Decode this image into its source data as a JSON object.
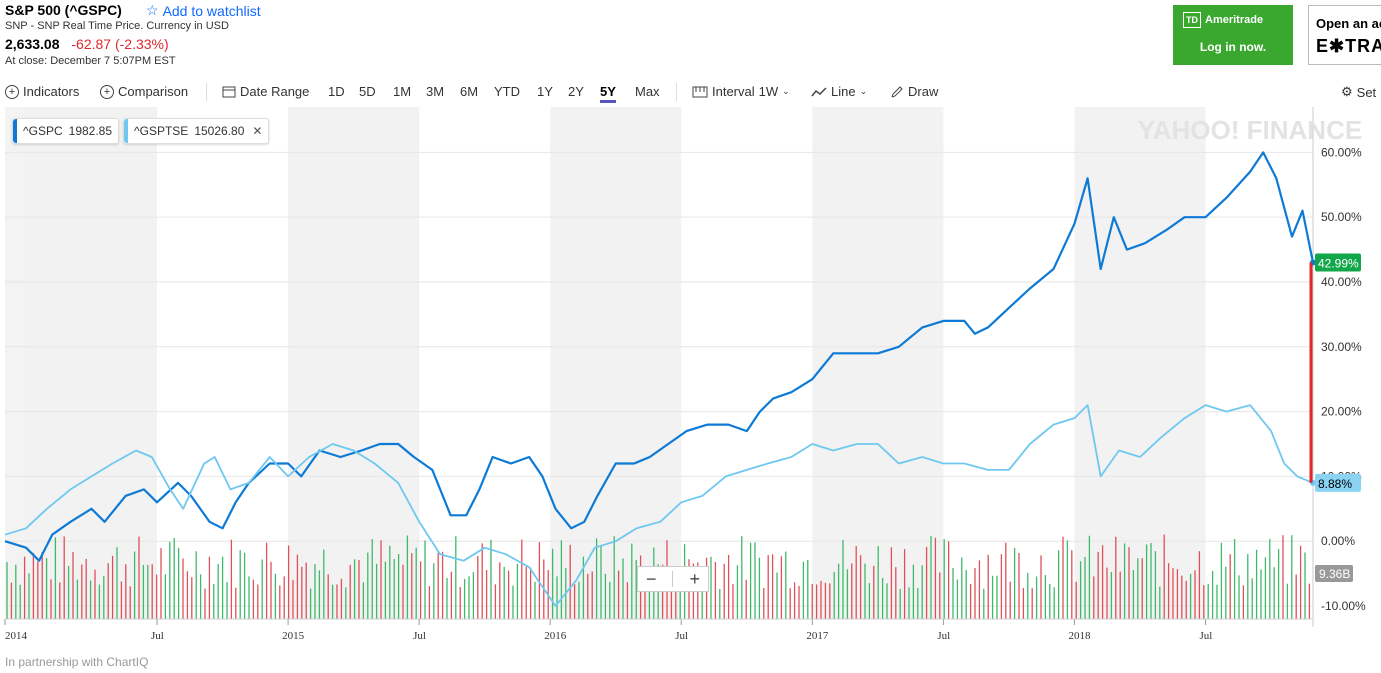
{
  "header": {
    "title": "S&P 500 (^GSPC)",
    "watchlist_label": "Add to watchlist",
    "subtitle": "SNP - SNP Real Time Price. Currency in USD",
    "price": "2,633.08",
    "change": "-62.87 (-2.33%)",
    "close_time": "At close: December 7 5:07PM EST"
  },
  "ads": {
    "td_brand": "Ameritrade",
    "td_icon_text": "TD",
    "td_cta": "Log in now.",
    "etrade_line1": "Open an ac",
    "etrade_line2": "E✱TRA"
  },
  "toolbar": {
    "indicators": "Indicators",
    "comparison": "Comparison",
    "date_range": "Date Range",
    "ranges": [
      "1D",
      "5D",
      "1M",
      "3M",
      "6M",
      "YTD",
      "1Y",
      "2Y",
      "5Y",
      "Max"
    ],
    "active_range": "5Y",
    "interval_label": "Interval",
    "interval_value": "1W",
    "chart_type": "Line",
    "draw": "Draw",
    "settings": "Set"
  },
  "legend": [
    {
      "symbol": "^GSPC",
      "value": "1982.85",
      "color": "#0d7ad6"
    },
    {
      "symbol": "^GSPTSE",
      "value": "15026.80",
      "color": "#6fc8f0",
      "close": "✕"
    }
  ],
  "chart_data": {
    "type": "line",
    "y_unit": "%",
    "ylim": [
      -12,
      67
    ],
    "y_ticks": [
      "60.00%",
      "50.00%",
      "40.00%",
      "30.00%",
      "20.00%",
      "10.00%",
      "0.00%",
      "-10.00%"
    ],
    "x_ticks": [
      "2014",
      "Jul",
      "2015",
      "Jul",
      "2016",
      "Jul",
      "2017",
      "Jul",
      "2018",
      "Jul"
    ],
    "watermark": "YAHOO! FINANCE",
    "series": [
      {
        "name": "^GSPC",
        "color": "#0d7ad6",
        "last_label": "42.99%",
        "points": [
          [
            2013.92,
            0
          ],
          [
            2014.0,
            -1
          ],
          [
            2014.05,
            -3
          ],
          [
            2014.1,
            1
          ],
          [
            2014.17,
            3
          ],
          [
            2014.25,
            5
          ],
          [
            2014.3,
            3
          ],
          [
            2014.38,
            7
          ],
          [
            2014.45,
            8
          ],
          [
            2014.5,
            6
          ],
          [
            2014.58,
            9
          ],
          [
            2014.63,
            7
          ],
          [
            2014.7,
            3
          ],
          [
            2014.75,
            2
          ],
          [
            2014.8,
            6
          ],
          [
            2014.85,
            9
          ],
          [
            2014.93,
            12
          ],
          [
            2015.0,
            12
          ],
          [
            2015.05,
            10
          ],
          [
            2015.12,
            14
          ],
          [
            2015.2,
            13
          ],
          [
            2015.28,
            14
          ],
          [
            2015.35,
            15
          ],
          [
            2015.42,
            15
          ],
          [
            2015.48,
            13
          ],
          [
            2015.55,
            11
          ],
          [
            2015.62,
            4
          ],
          [
            2015.68,
            4
          ],
          [
            2015.73,
            8
          ],
          [
            2015.78,
            13
          ],
          [
            2015.85,
            12
          ],
          [
            2015.92,
            13
          ],
          [
            2015.97,
            10
          ],
          [
            2016.02,
            5
          ],
          [
            2016.08,
            2
          ],
          [
            2016.13,
            3
          ],
          [
            2016.18,
            7
          ],
          [
            2016.25,
            12
          ],
          [
            2016.32,
            12
          ],
          [
            2016.38,
            13
          ],
          [
            2016.45,
            15
          ],
          [
            2016.52,
            17
          ],
          [
            2016.6,
            18
          ],
          [
            2016.68,
            18
          ],
          [
            2016.75,
            17
          ],
          [
            2016.8,
            20
          ],
          [
            2016.85,
            22
          ],
          [
            2016.92,
            23
          ],
          [
            2017.0,
            25
          ],
          [
            2017.08,
            29
          ],
          [
            2017.17,
            29
          ],
          [
            2017.25,
            29
          ],
          [
            2017.33,
            30
          ],
          [
            2017.42,
            33
          ],
          [
            2017.5,
            34
          ],
          [
            2017.58,
            34
          ],
          [
            2017.62,
            32
          ],
          [
            2017.67,
            33
          ],
          [
            2017.75,
            36
          ],
          [
            2017.83,
            39
          ],
          [
            2017.92,
            42
          ],
          [
            2018.0,
            49
          ],
          [
            2018.05,
            56
          ],
          [
            2018.1,
            42
          ],
          [
            2018.15,
            50
          ],
          [
            2018.2,
            45
          ],
          [
            2018.27,
            46
          ],
          [
            2018.35,
            48
          ],
          [
            2018.42,
            50
          ],
          [
            2018.5,
            50
          ],
          [
            2018.58,
            53
          ],
          [
            2018.67,
            57
          ],
          [
            2018.72,
            60
          ],
          [
            2018.77,
            56
          ],
          [
            2018.83,
            47
          ],
          [
            2018.87,
            51
          ],
          [
            2018.91,
            43
          ]
        ]
      },
      {
        "name": "^GSPTSE",
        "color": "#6fc8f0",
        "last_label": "8.88%",
        "points": [
          [
            2013.92,
            1
          ],
          [
            2014.0,
            2
          ],
          [
            2014.08,
            5
          ],
          [
            2014.17,
            8
          ],
          [
            2014.25,
            10
          ],
          [
            2014.33,
            12
          ],
          [
            2014.42,
            14
          ],
          [
            2014.48,
            13
          ],
          [
            2014.55,
            8
          ],
          [
            2014.6,
            5
          ],
          [
            2014.68,
            12
          ],
          [
            2014.72,
            13
          ],
          [
            2014.78,
            8
          ],
          [
            2014.85,
            9
          ],
          [
            2014.93,
            13
          ],
          [
            2015.0,
            10
          ],
          [
            2015.08,
            13
          ],
          [
            2015.17,
            15
          ],
          [
            2015.25,
            14
          ],
          [
            2015.33,
            12
          ],
          [
            2015.42,
            9
          ],
          [
            2015.5,
            3
          ],
          [
            2015.58,
            -2
          ],
          [
            2015.67,
            -3
          ],
          [
            2015.75,
            -1
          ],
          [
            2015.83,
            -2
          ],
          [
            2015.92,
            -4
          ],
          [
            2016.02,
            -10
          ],
          [
            2016.1,
            -6
          ],
          [
            2016.17,
            -1
          ],
          [
            2016.25,
            0
          ],
          [
            2016.33,
            2
          ],
          [
            2016.42,
            3
          ],
          [
            2016.5,
            6
          ],
          [
            2016.58,
            7
          ],
          [
            2016.67,
            10
          ],
          [
            2016.75,
            11
          ],
          [
            2016.83,
            12
          ],
          [
            2016.92,
            13
          ],
          [
            2017.0,
            15
          ],
          [
            2017.08,
            14
          ],
          [
            2017.17,
            15
          ],
          [
            2017.25,
            15
          ],
          [
            2017.33,
            12
          ],
          [
            2017.42,
            13
          ],
          [
            2017.5,
            12
          ],
          [
            2017.58,
            12
          ],
          [
            2017.67,
            11
          ],
          [
            2017.75,
            11
          ],
          [
            2017.83,
            15
          ],
          [
            2017.92,
            18
          ],
          [
            2018.0,
            19
          ],
          [
            2018.05,
            21
          ],
          [
            2018.1,
            10
          ],
          [
            2018.17,
            14
          ],
          [
            2018.25,
            13
          ],
          [
            2018.33,
            16
          ],
          [
            2018.42,
            19
          ],
          [
            2018.5,
            21
          ],
          [
            2018.58,
            20
          ],
          [
            2018.67,
            21
          ],
          [
            2018.75,
            17
          ],
          [
            2018.8,
            12
          ],
          [
            2018.85,
            10
          ],
          [
            2018.91,
            9
          ]
        ]
      }
    ],
    "volume_label": "9.36B"
  },
  "footer": "In partnership with ChartIQ"
}
